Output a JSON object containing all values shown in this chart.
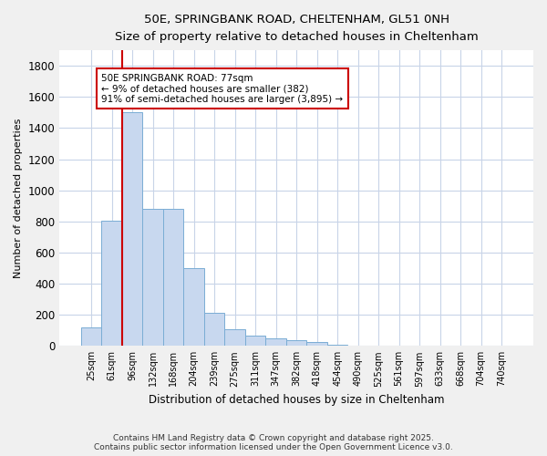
{
  "title_line1": "50E, SPRINGBANK ROAD, CHELTENHAM, GL51 0NH",
  "title_line2": "Size of property relative to detached houses in Cheltenham",
  "xlabel": "Distribution of detached houses by size in Cheltenham",
  "ylabel": "Number of detached properties",
  "bar_color": "#c8d8ef",
  "bar_edge_color": "#7aadd4",
  "grid_color": "#c8d4e8",
  "bg_color": "#ffffff",
  "fig_bg_color": "#f0f0f0",
  "annotation_text": "50E SPRINGBANK ROAD: 77sqm\n← 9% of detached houses are smaller (382)\n91% of semi-detached houses are larger (3,895) →",
  "annotation_box_color": "#ffffff",
  "annotation_box_edge": "#cc0000",
  "vline_color": "#cc0000",
  "footer": "Contains HM Land Registry data © Crown copyright and database right 2025.\nContains public sector information licensed under the Open Government Licence v3.0.",
  "categories": [
    "25sqm",
    "61sqm",
    "96sqm",
    "132sqm",
    "168sqm",
    "204sqm",
    "239sqm",
    "275sqm",
    "311sqm",
    "347sqm",
    "382sqm",
    "418sqm",
    "454sqm",
    "490sqm",
    "525sqm",
    "561sqm",
    "597sqm",
    "633sqm",
    "668sqm",
    "704sqm",
    "740sqm"
  ],
  "values": [
    120,
    805,
    1500,
    880,
    880,
    500,
    210,
    110,
    65,
    50,
    35,
    25,
    5,
    2,
    2,
    2,
    2,
    2,
    2,
    2,
    2
  ],
  "ylim": [
    0,
    1900
  ],
  "yticks": [
    0,
    200,
    400,
    600,
    800,
    1000,
    1200,
    1400,
    1600,
    1800
  ],
  "vline_pos": 1.5
}
